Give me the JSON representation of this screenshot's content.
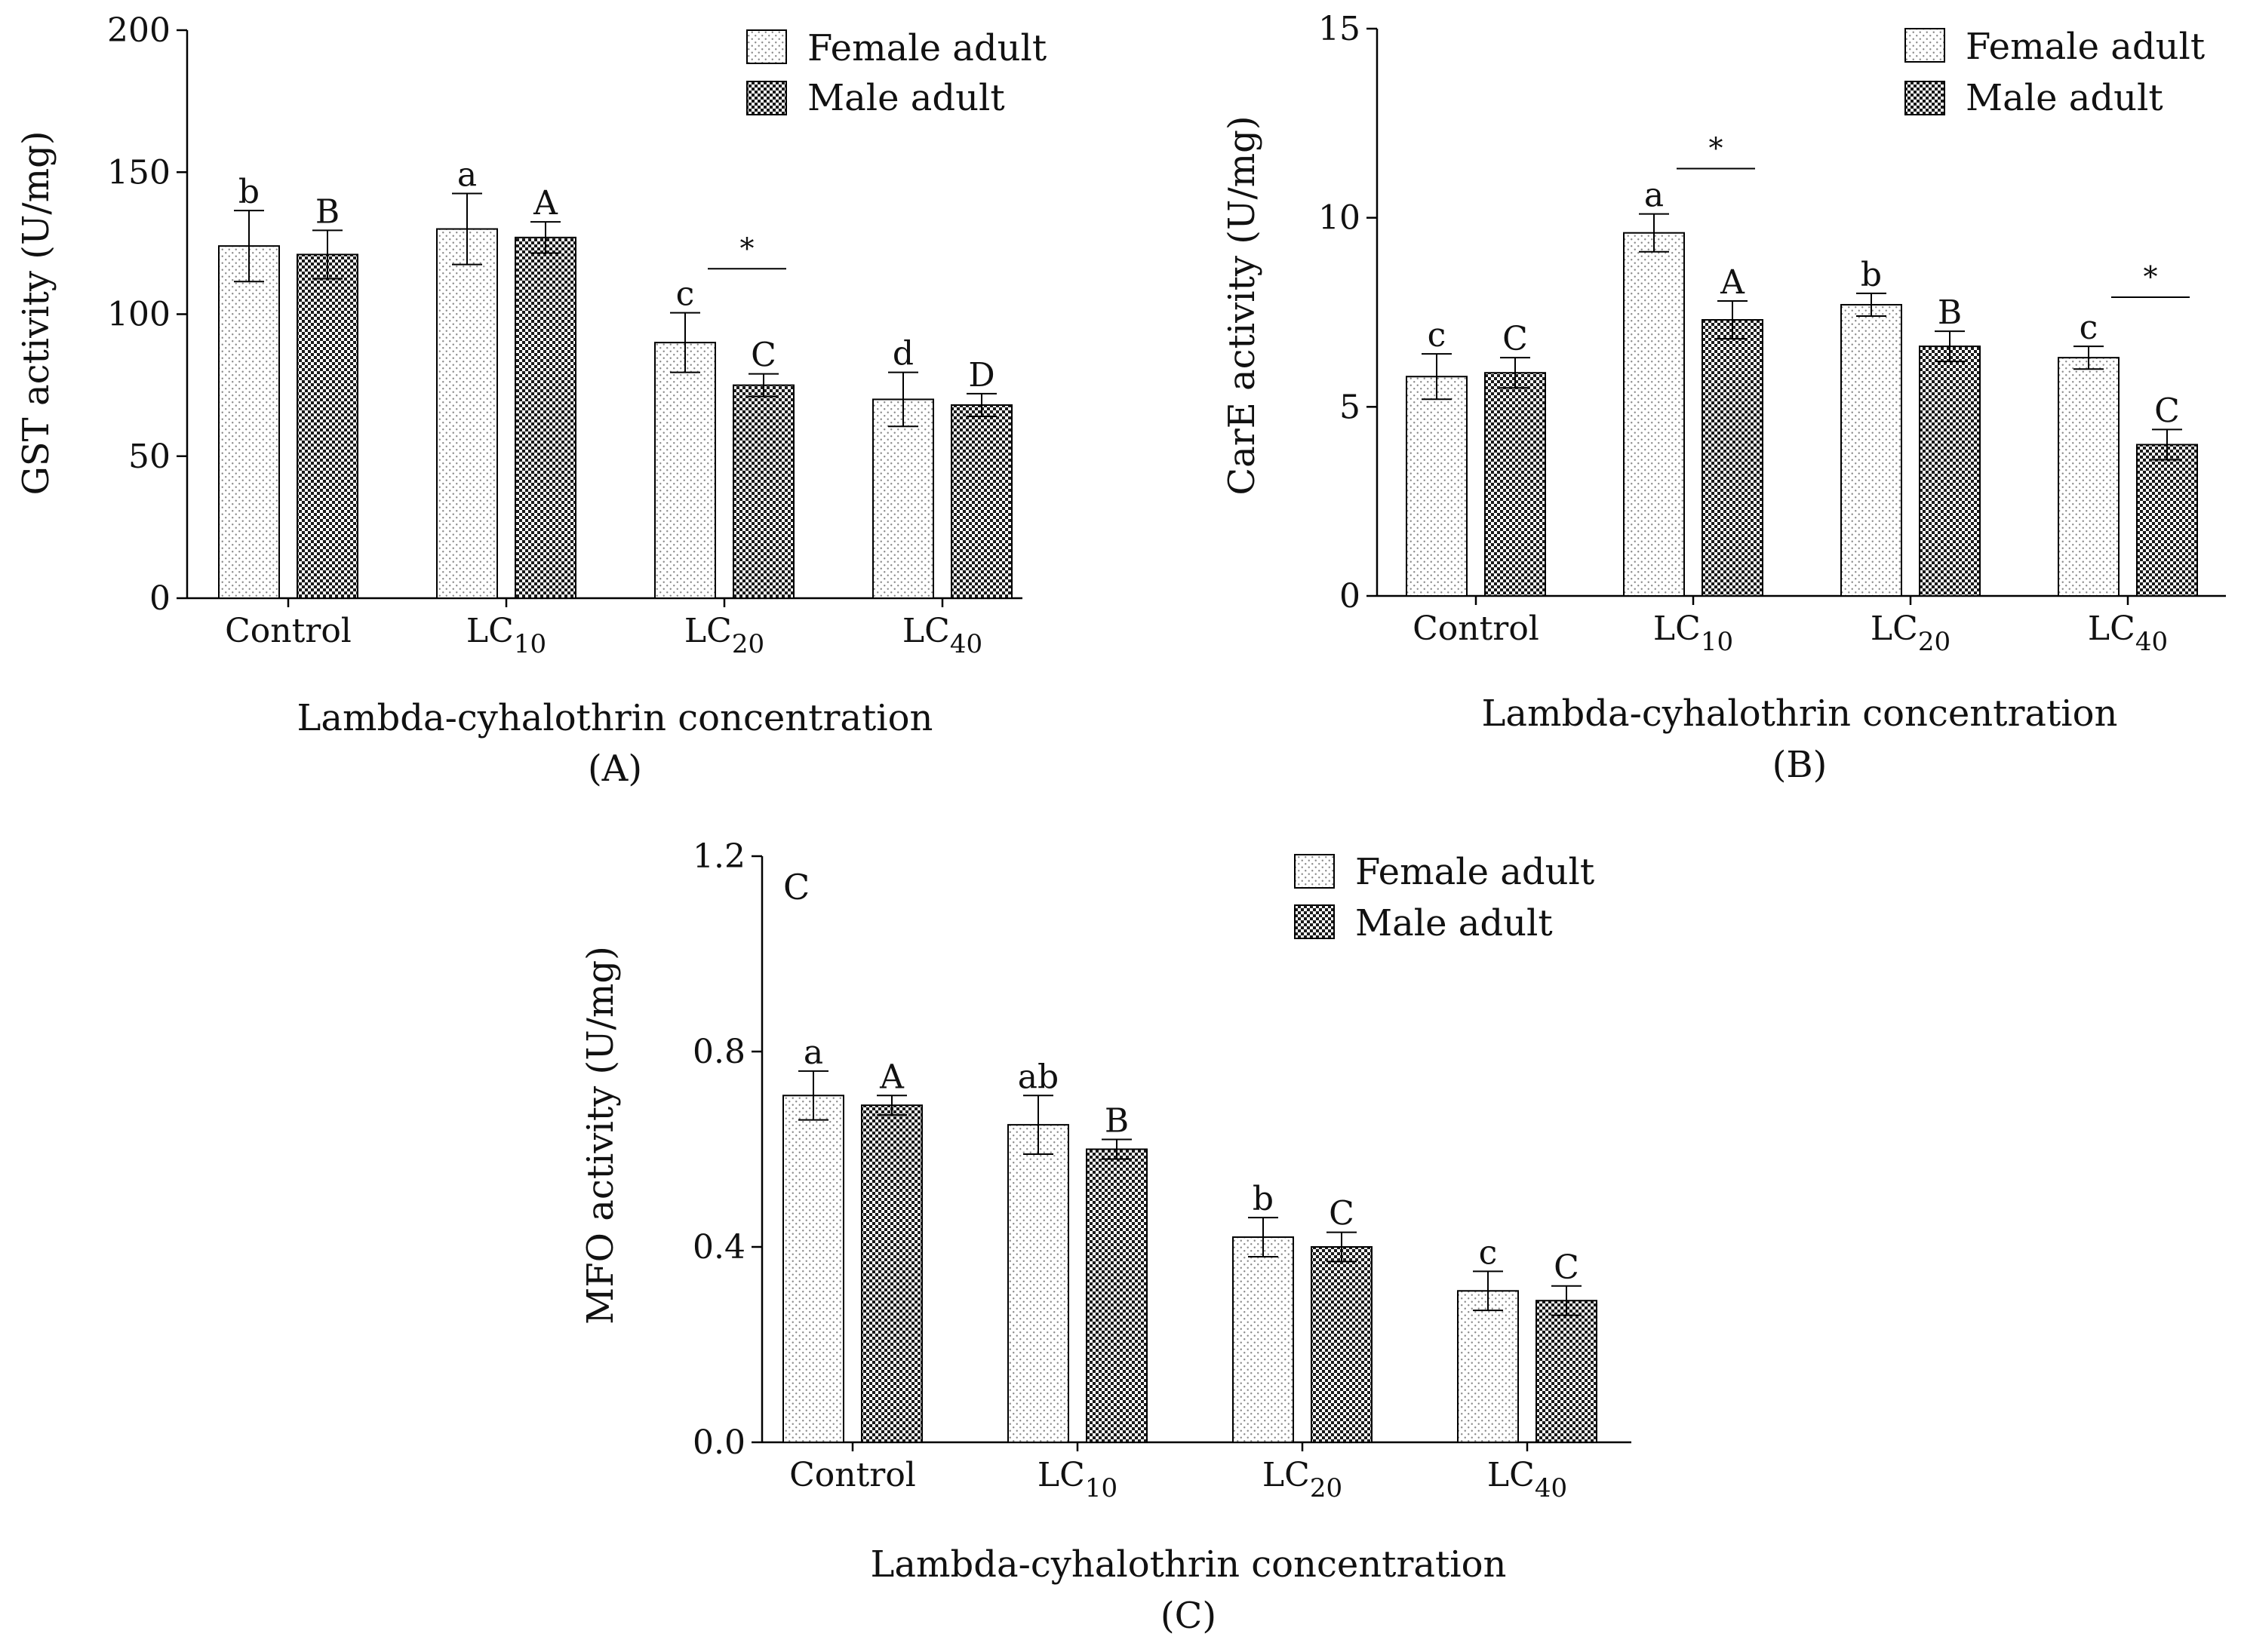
{
  "legend": {
    "female_label": "Female adult",
    "male_label": "Male adult"
  },
  "chart_data": [
    {
      "type": "bar",
      "panel": "(A)",
      "ylabel": "GST activity (U/mg)",
      "xlabel": "Lambda-cyhalothrin concentration",
      "ylim": [
        0,
        200
      ],
      "yticks": [
        "0",
        "50",
        "100",
        "150",
        "200"
      ],
      "categories": [
        {
          "base": "Control",
          "sub": ""
        },
        {
          "base": "LC",
          "sub": "10"
        },
        {
          "base": "LC",
          "sub": "20"
        },
        {
          "base": "LC",
          "sub": "40"
        }
      ],
      "series": [
        {
          "name": "Female adult",
          "values": [
            124,
            130,
            90,
            70
          ],
          "errors": [
            12.5,
            12.5,
            10.5,
            9.5
          ],
          "letters": [
            "b",
            "a",
            "c",
            "d"
          ]
        },
        {
          "name": "Male adult",
          "values": [
            121,
            127,
            75,
            68
          ],
          "errors": [
            8.5,
            5.5,
            4.0,
            4.0
          ],
          "letters": [
            "B",
            "A",
            "C",
            "D"
          ]
        }
      ],
      "significance": [
        {
          "category": 2,
          "label": "*",
          "y": 116
        }
      ],
      "corner_label": ""
    },
    {
      "type": "bar",
      "panel": "(B)",
      "ylabel": "CarE activity (U/mg)",
      "xlabel": "Lambda-cyhalothrin concentration",
      "ylim": [
        0,
        15
      ],
      "yticks": [
        "0",
        "5",
        "10",
        "15"
      ],
      "categories": [
        {
          "base": "Control",
          "sub": ""
        },
        {
          "base": "LC",
          "sub": "10"
        },
        {
          "base": "LC",
          "sub": "20"
        },
        {
          "base": "LC",
          "sub": "40"
        }
      ],
      "series": [
        {
          "name": "Female adult",
          "values": [
            5.8,
            9.6,
            7.7,
            6.3
          ],
          "errors": [
            0.6,
            0.5,
            0.3,
            0.3
          ],
          "letters": [
            "c",
            "a",
            "b",
            "c"
          ]
        },
        {
          "name": "Male adult",
          "values": [
            5.9,
            7.3,
            6.6,
            4.0
          ],
          "errors": [
            0.4,
            0.5,
            0.4,
            0.4
          ],
          "letters": [
            "C",
            "A",
            "B",
            "C"
          ]
        }
      ],
      "significance": [
        {
          "category": 1,
          "label": "*",
          "y": 11.3
        },
        {
          "category": 3,
          "label": "*",
          "y": 7.9
        }
      ],
      "corner_label": ""
    },
    {
      "type": "bar",
      "panel": "(C)",
      "ylabel": "MFO activity (U/mg)",
      "xlabel": "Lambda-cyhalothrin concentration",
      "ylim": [
        0,
        1.2
      ],
      "yticks": [
        "0.0",
        "0.4",
        "0.8",
        "1.2"
      ],
      "categories": [
        {
          "base": "Control",
          "sub": ""
        },
        {
          "base": "LC",
          "sub": "10"
        },
        {
          "base": "LC",
          "sub": "20"
        },
        {
          "base": "LC",
          "sub": "40"
        }
      ],
      "series": [
        {
          "name": "Female adult",
          "values": [
            0.71,
            0.65,
            0.42,
            0.31
          ],
          "errors": [
            0.05,
            0.06,
            0.04,
            0.04
          ],
          "letters": [
            "a",
            "ab",
            "b",
            "c"
          ]
        },
        {
          "name": "Male adult",
          "values": [
            0.69,
            0.6,
            0.4,
            0.29
          ],
          "errors": [
            0.02,
            0.02,
            0.03,
            0.03
          ],
          "letters": [
            "A",
            "B",
            "C",
            "C"
          ]
        }
      ],
      "significance": [],
      "corner_label": "C"
    }
  ]
}
